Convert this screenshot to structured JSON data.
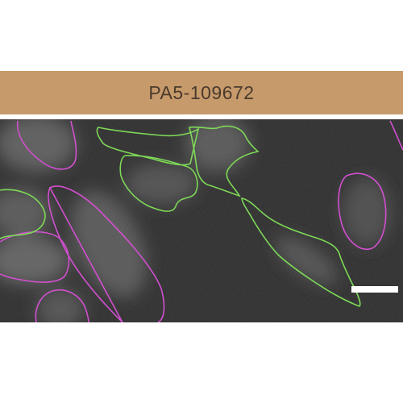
{
  "label": "PA5-109672",
  "colors": {
    "label_bar": "#c69a6b",
    "label_text": "#4a3a2c",
    "background": "#2b2b2b",
    "outline_magenta": "#d24fd0",
    "outline_green": "#7ed957",
    "scale_bar": "#ffffff"
  }
}
